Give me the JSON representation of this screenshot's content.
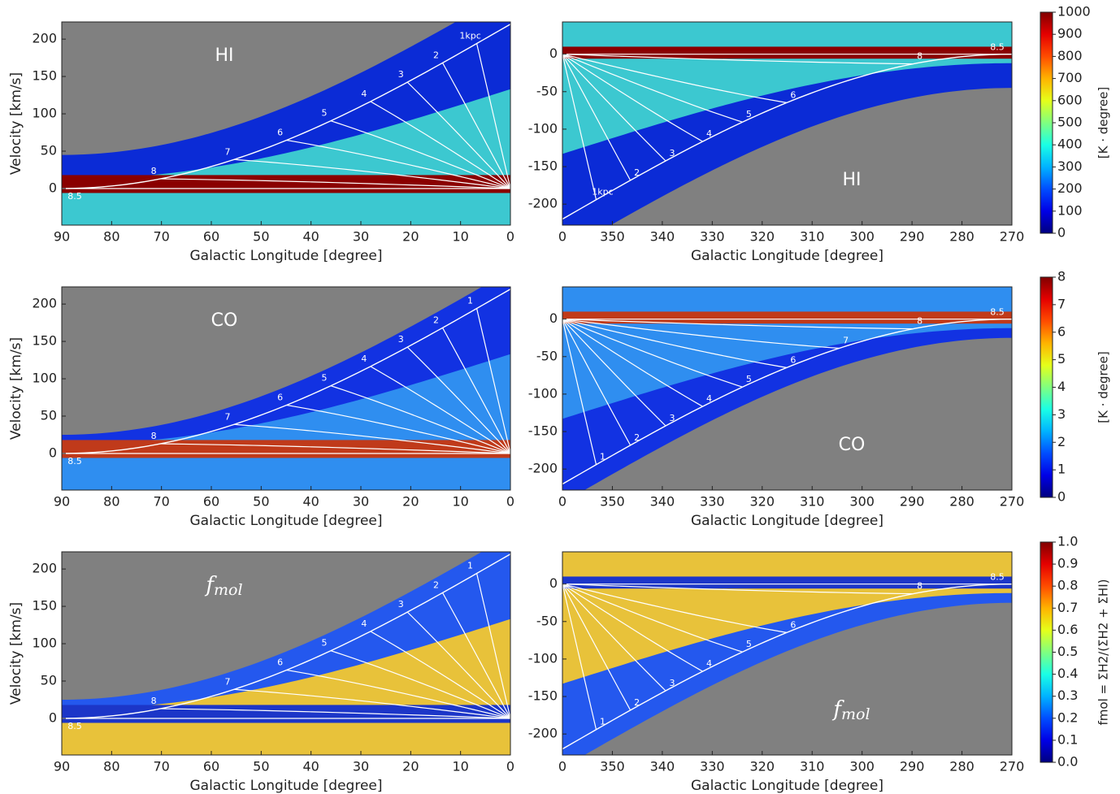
{
  "chart_data": [
    {
      "type": "heatmap",
      "label": "HI",
      "xlabel": "Galactic Longitude [degree]",
      "ylabel": "Velocity [km/s]",
      "xlim": [
        90,
        0
      ],
      "xticks": [
        90,
        80,
        70,
        60,
        50,
        40,
        30,
        20,
        10,
        0
      ],
      "ylim": [
        -49,
        223
      ],
      "yticks": [
        0,
        50,
        100,
        150,
        200
      ],
      "distance_labels": [
        "1kpc",
        "2",
        "3",
        "4",
        "5",
        "6",
        "7",
        "8",
        "8.5"
      ]
    },
    {
      "type": "heatmap",
      "label": "HI",
      "xlabel": "Galactic Longitude [degree]",
      "xlim": [
        360,
        270
      ],
      "xticks": [
        {
          "value": 360,
          "label": "0"
        },
        350,
        340,
        330,
        320,
        310,
        300,
        290,
        280,
        270
      ],
      "ylim": [
        -228,
        43
      ],
      "yticks": [
        -200,
        -150,
        -100,
        -50,
        0
      ],
      "distance_labels": [
        "1kpc",
        "2",
        "3",
        "4",
        "5",
        "6",
        "8",
        "8.5"
      ]
    },
    {
      "type": "heatmap",
      "label": "CO",
      "xlabel": "Galactic Longitude [degree]",
      "ylabel": "Velocity [km/s]",
      "xlim": [
        90,
        0
      ],
      "xticks": [
        90,
        80,
        70,
        60,
        50,
        40,
        30,
        20,
        10,
        0
      ],
      "ylim": [
        -49,
        223
      ],
      "yticks": [
        0,
        50,
        100,
        150,
        200
      ],
      "distance_labels": [
        "1",
        "2",
        "3",
        "4",
        "5",
        "6",
        "7",
        "8",
        "8.5"
      ]
    },
    {
      "type": "heatmap",
      "label": "CO",
      "xlabel": "Galactic Longitude [degree]",
      "xlim": [
        360,
        270
      ],
      "xticks": [
        {
          "value": 360,
          "label": "0"
        },
        350,
        340,
        330,
        320,
        310,
        300,
        290,
        280,
        270
      ],
      "ylim": [
        -228,
        43
      ],
      "yticks": [
        -200,
        -150,
        -100,
        -50,
        0
      ],
      "distance_labels": [
        "1",
        "2",
        "3",
        "4",
        "5",
        "6",
        "7",
        "8",
        "8.5"
      ]
    },
    {
      "type": "heatmap",
      "label": "f",
      "label_sub": "mol",
      "xlabel": "Galactic Longitude [degree]",
      "ylabel": "Velocity [km/s]",
      "xlim": [
        90,
        0
      ],
      "xticks": [
        90,
        80,
        70,
        60,
        50,
        40,
        30,
        20,
        10,
        0
      ],
      "ylim": [
        -49,
        223
      ],
      "yticks": [
        0,
        50,
        100,
        150,
        200
      ],
      "distance_labels": [
        "1",
        "2",
        "3",
        "4",
        "5",
        "6",
        "7",
        "8",
        "8.5"
      ]
    },
    {
      "type": "heatmap",
      "label": "f",
      "label_sub": "mol",
      "xlabel": "Galactic Longitude [degree]",
      "xlim": [
        360,
        270
      ],
      "xticks": [
        {
          "value": 360,
          "label": "0"
        },
        350,
        340,
        330,
        320,
        310,
        300,
        290,
        280,
        270
      ],
      "ylim": [
        -228,
        43
      ],
      "yticks": [
        -200,
        -150,
        -100,
        -50,
        0
      ],
      "distance_labels": [
        "1",
        "2",
        "3",
        "4",
        "5",
        "6",
        "8",
        "8.5"
      ]
    },
    {
      "type": "colorbar",
      "colormap": "jet",
      "label": "[K · degree]",
      "ylim": [
        0,
        1000
      ],
      "yticks": [
        0,
        100,
        200,
        300,
        400,
        500,
        600,
        700,
        800,
        900,
        1000
      ]
    },
    {
      "type": "colorbar",
      "colormap": "jet",
      "label": "[K · degree]",
      "ylim": [
        0,
        8
      ],
      "yticks": [
        0,
        1,
        2,
        3,
        4,
        5,
        6,
        7,
        8
      ]
    },
    {
      "type": "colorbar",
      "colormap": "jet",
      "label": "fmol = ΣH2/(ΣH2 + ΣHI)",
      "ylim": [
        0,
        1
      ],
      "yticks": [
        {
          "value": 0,
          "label": "0.0"
        },
        0.1,
        0.2,
        0.3,
        0.4,
        0.5,
        0.6,
        0.7,
        0.8,
        0.9,
        {
          "value": 1,
          "label": "1.0"
        }
      ]
    }
  ]
}
